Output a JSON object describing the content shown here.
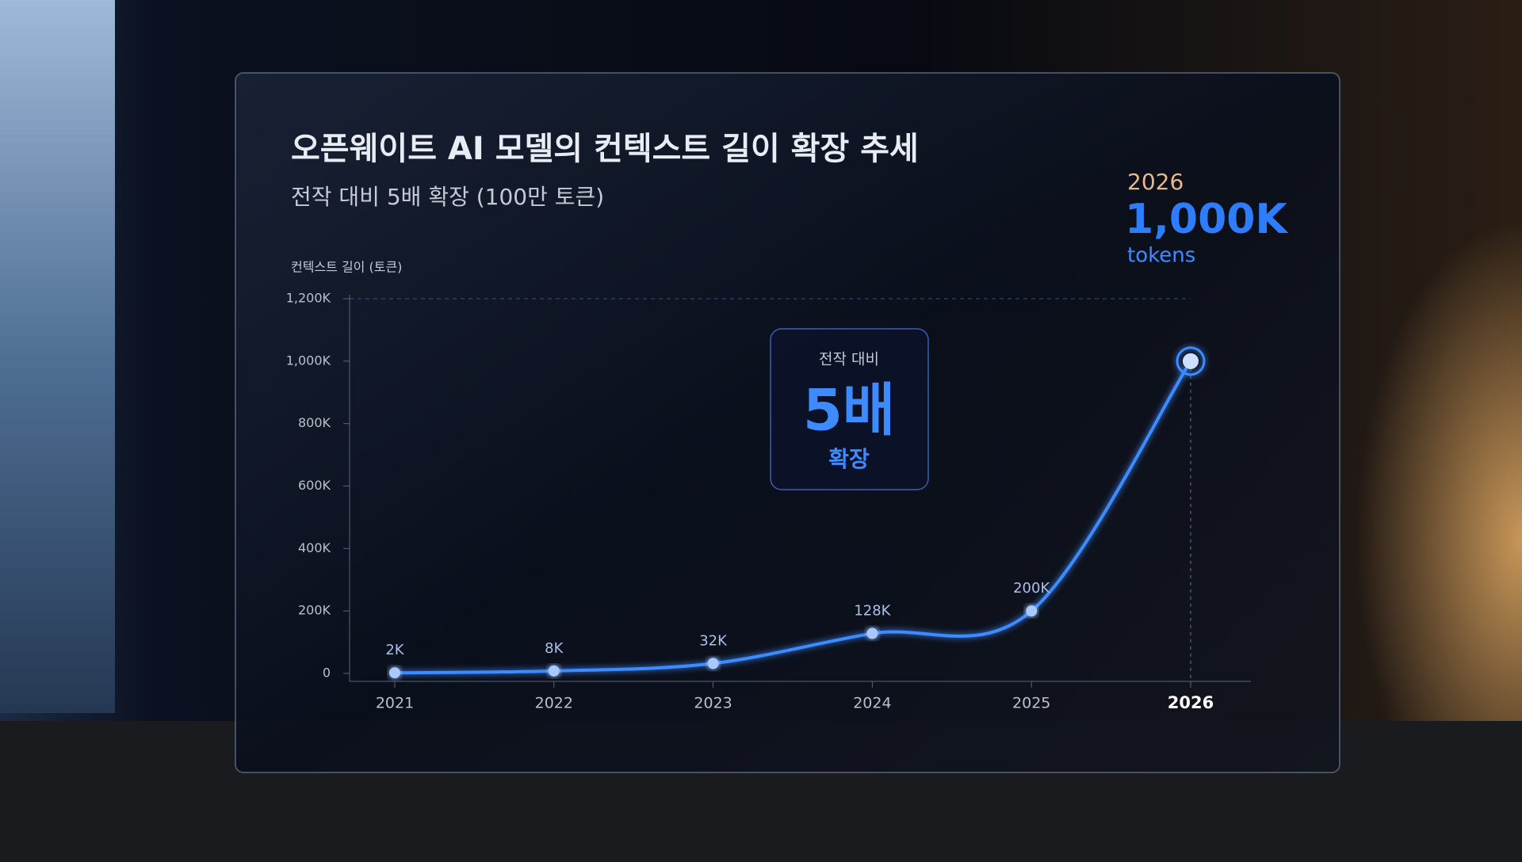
{
  "chart_data": {
    "type": "line",
    "title": "오픈웨이트 AI 모델의 컨텍스트 길이 확장 추세",
    "subtitle": "전작 대비 5배 확장 (100만 토큰)",
    "y_axis_label": "컨텍스트 길이 (토큰)",
    "categories": [
      "2021",
      "2022",
      "2023",
      "2024",
      "2025",
      "2026"
    ],
    "values": [
      2,
      8,
      32,
      128,
      200,
      1000
    ],
    "value_labels": [
      "2K",
      "8K",
      "32K",
      "128K",
      "200K",
      "1,000K"
    ],
    "value_unit_label": "tokens",
    "color": "#3d8bff",
    "ylim": [
      0,
      1200
    ],
    "yticks": [
      0,
      {
        "value": 200,
        "label": "200K"
      },
      {
        "value": 400,
        "label": "400K"
      },
      {
        "value": 600,
        "label": "600K"
      },
      {
        "value": 800,
        "label": "800K"
      },
      {
        "value": 1000,
        "label": "1,000K"
      },
      {
        "value": 1200,
        "label": "1,200K"
      }
    ],
    "annotation": {
      "top": "전작 대비",
      "main": "5배",
      "bottom": "확장"
    }
  }
}
